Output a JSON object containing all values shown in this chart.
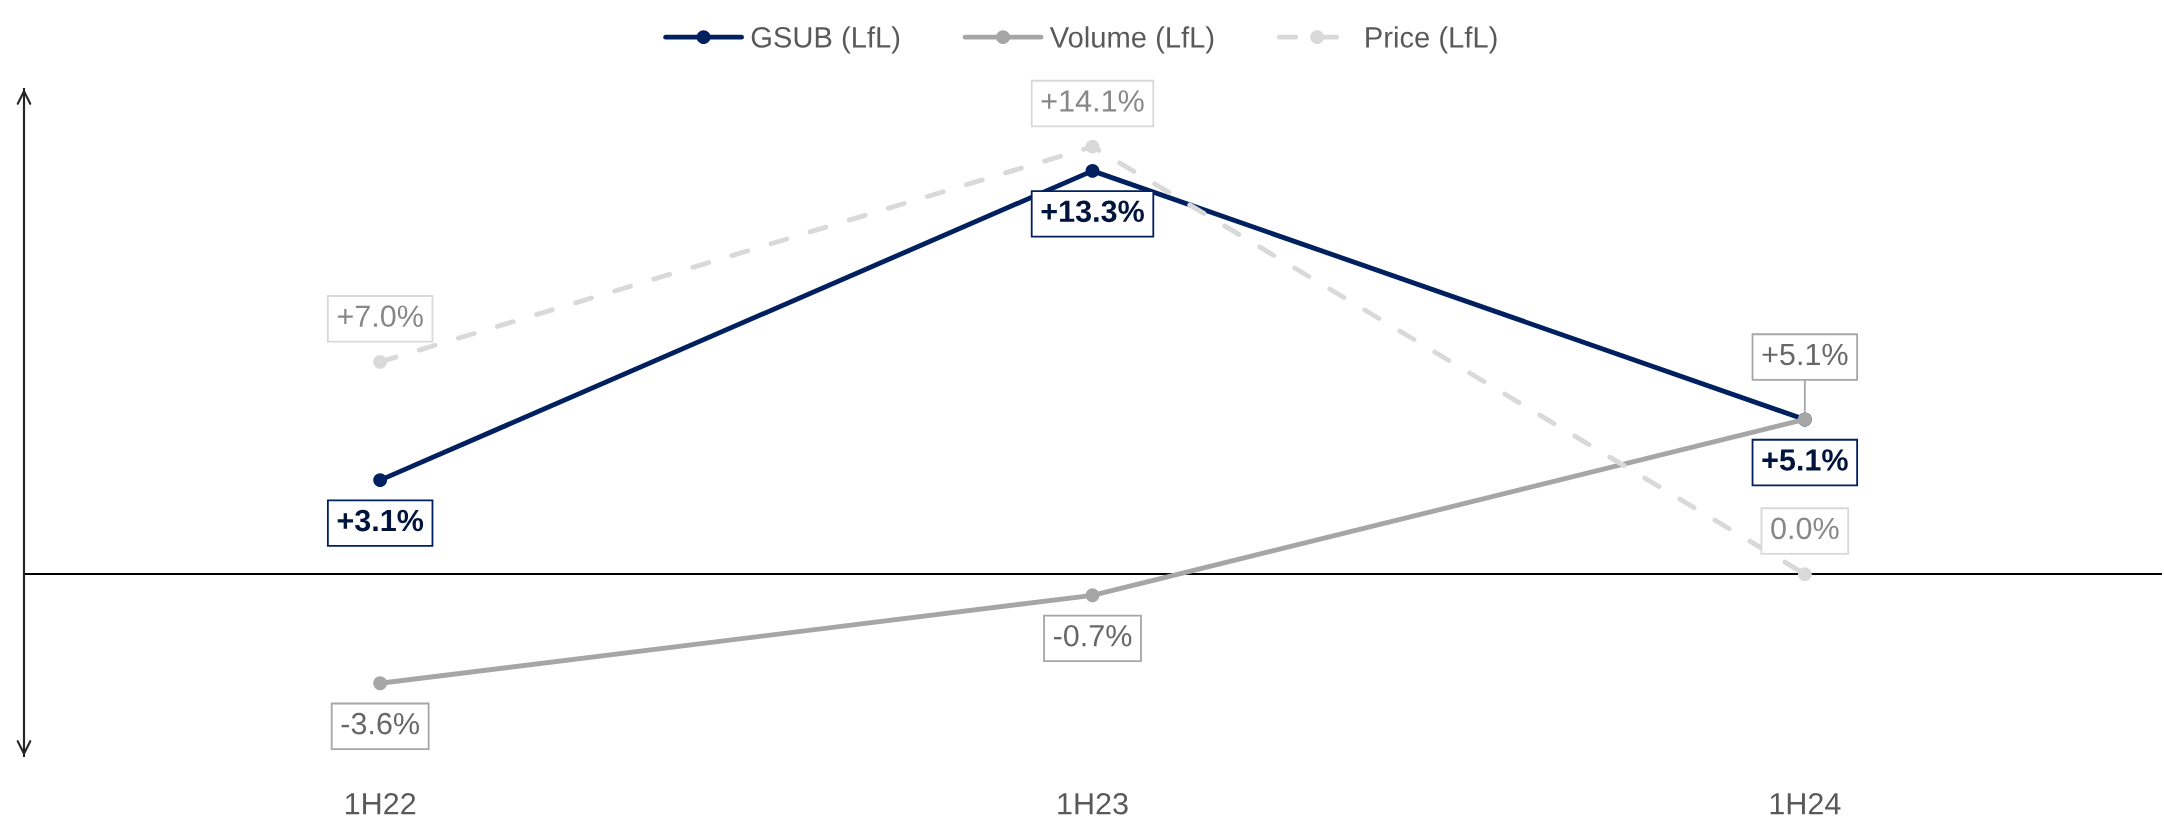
{
  "chart_data": {
    "type": "line",
    "categories": [
      "1H22",
      "1H23",
      "1H24"
    ],
    "series": [
      {
        "name": "GSUB (LfL)",
        "color": "#002060",
        "values": [
          3.1,
          13.3,
          5.1
        ],
        "value_labels": [
          "+3.1%",
          "+13.3%",
          "+5.1%"
        ]
      },
      {
        "name": "Volume (LfL)",
        "color": "#a6a6a6",
        "values": [
          -3.6,
          -0.7,
          5.1
        ],
        "value_labels": [
          "-3.6%",
          "-0.7%",
          "+5.1%"
        ]
      },
      {
        "name": "Price (LfL)",
        "color": "#d9d9d9",
        "values": [
          7.0,
          14.1,
          0.0
        ],
        "value_labels": [
          "+7.0%",
          "+14.1%",
          "0.0%"
        ],
        "line_style": "dashed"
      }
    ],
    "ylim": [
      -6,
      16
    ],
    "tick_labels": "x",
    "legend": "top",
    "marker": "circle",
    "line_style": "solid"
  }
}
